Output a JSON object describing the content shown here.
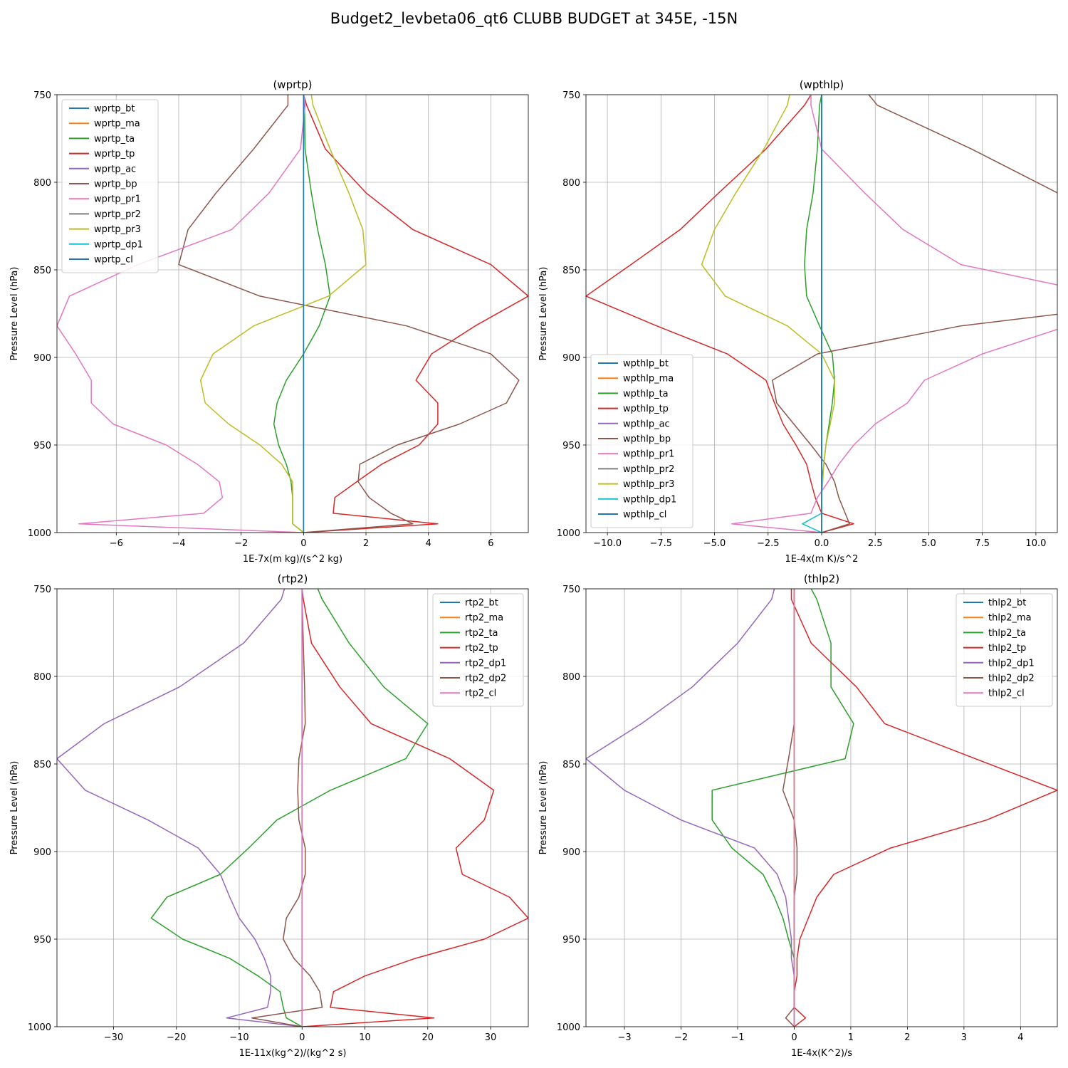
{
  "figure": {
    "title": "Budget2_levbeta06_qt6 CLUBB BUDGET at 345E, -15N"
  },
  "colors": [
    "#1f77b4",
    "#ff7f0e",
    "#2ca02c",
    "#d62728",
    "#9467bd",
    "#8c564b",
    "#e377c2",
    "#7f7f7f",
    "#bcbd22",
    "#17becf"
  ],
  "chart_data": [
    {
      "type": "line",
      "title": "(wprtp)",
      "xlabel": "1E-7x(m kg)/(s^2 kg)",
      "ylabel": "Pressure Level (hPa)",
      "xlim": [
        -7.9,
        7.2
      ],
      "ylim": [
        1000,
        750
      ],
      "xticks": [
        -6,
        -4,
        -2,
        0,
        2,
        4,
        6
      ],
      "xtick_labels": [
        "−6",
        "−4",
        "−2",
        "0",
        "2",
        "4",
        "6"
      ],
      "yticks": [
        750,
        800,
        850,
        900,
        950,
        1000
      ],
      "grid": true,
      "legend": "upper-left",
      "levels": [
        750,
        756,
        781,
        806,
        827,
        847,
        865,
        882,
        898,
        913,
        926,
        938,
        950,
        961,
        971,
        980,
        989,
        995,
        1000
      ],
      "series": [
        {
          "name": "wprtp_bt",
          "color": "#1f77b4",
          "values": [
            0,
            0,
            0,
            0,
            0,
            0,
            0,
            0,
            0,
            0,
            0,
            0,
            0,
            0,
            0,
            0,
            0,
            0,
            0
          ]
        },
        {
          "name": "wprtp_ma",
          "color": "#ff7f0e",
          "values": [
            0,
            0,
            0,
            0,
            0,
            0,
            0,
            0,
            0,
            0,
            0,
            0,
            0,
            0,
            0,
            0,
            0,
            0,
            0
          ]
        },
        {
          "name": "wprtp_ta",
          "color": "#2ca02c",
          "values": [
            0,
            0.03,
            0.05,
            0.25,
            0.45,
            0.7,
            0.85,
            0.5,
            0,
            -0.55,
            -0.85,
            -0.95,
            -0.8,
            -0.55,
            -0.4,
            -0.35,
            -0.35,
            -0.35,
            0
          ]
        },
        {
          "name": "wprtp_tp",
          "color": "#d62728",
          "values": [
            0,
            0.1,
            0.7,
            2,
            3.5,
            6,
            7.2,
            5.5,
            4.1,
            3.6,
            4.3,
            4.3,
            3.7,
            2.5,
            1.7,
            1.0,
            0.95,
            4.3,
            0
          ]
        },
        {
          "name": "wprtp_ac",
          "color": "#9467bd",
          "values": [
            0,
            0,
            0,
            0,
            0,
            0,
            0,
            0,
            0,
            0,
            0,
            0,
            0,
            0,
            0,
            0,
            0,
            0,
            0
          ]
        },
        {
          "name": "wprtp_bp",
          "color": "#8c564b",
          "values": [
            -0.5,
            -0.5,
            -1.6,
            -2.8,
            -3.7,
            -4.0,
            -1.4,
            3.3,
            6.0,
            6.9,
            6.5,
            5.0,
            3.0,
            1.8,
            1.75,
            2.1,
            2.8,
            3.5,
            0
          ]
        },
        {
          "name": "wprtp_pr1",
          "color": "#e377c2",
          "values": [
            0,
            0.05,
            -0.1,
            -1.1,
            -2.3,
            -5.3,
            -7.5,
            -7.9,
            -7.3,
            -6.8,
            -6.8,
            -6.1,
            -4.4,
            -3.4,
            -2.7,
            -2.6,
            -3.2,
            -7.2,
            0
          ]
        },
        {
          "name": "wprtp_pr2",
          "color": "#7f7f7f",
          "values": [
            0,
            0,
            0,
            0,
            0,
            0,
            0,
            0,
            0,
            0,
            0,
            0,
            0,
            0,
            0,
            0,
            0,
            0,
            0
          ]
        },
        {
          "name": "wprtp_pr3",
          "color": "#bcbd22",
          "values": [
            0.25,
            0.3,
            0.85,
            1.45,
            1.9,
            2.0,
            0.8,
            -1.6,
            -2.9,
            -3.3,
            -3.15,
            -2.4,
            -1.4,
            -0.7,
            -0.35,
            -0.35,
            -0.35,
            -0.35,
            0
          ]
        },
        {
          "name": "wprtp_dp1",
          "color": "#17becf",
          "values": [
            0,
            0,
            0,
            0,
            0,
            0,
            0,
            0,
            0,
            0,
            0,
            0,
            0,
            0,
            0,
            0,
            0,
            0,
            0
          ]
        },
        {
          "name": "wprtp_cl",
          "color": "#1f77b4",
          "values": [
            0,
            0,
            0,
            0,
            0,
            0,
            0,
            0,
            0,
            0,
            0,
            0,
            0,
            0,
            0,
            0,
            0,
            0,
            0
          ]
        }
      ]
    },
    {
      "type": "line",
      "title": "(wpthlp)",
      "xlabel": "1E-4x(m K)/s^2",
      "ylabel": "Pressure Level (hPa)",
      "xlim": [
        -11,
        11
      ],
      "ylim": [
        1000,
        750
      ],
      "xticks": [
        -10,
        -7.5,
        -5,
        -2.5,
        0,
        2.5,
        5,
        7.5,
        10
      ],
      "xtick_labels": [
        "−10.0",
        "−7.5",
        "−5.0",
        "−2.5",
        "0.0",
        "2.5",
        "5.0",
        "7.5",
        "10.0"
      ],
      "yticks": [
        750,
        800,
        850,
        900,
        950,
        1000
      ],
      "grid": true,
      "legend": "lower-left",
      "levels": [
        750,
        756,
        781,
        806,
        827,
        847,
        865,
        882,
        898,
        913,
        926,
        938,
        950,
        961,
        971,
        980,
        989,
        995,
        1000
      ],
      "series": [
        {
          "name": "wpthlp_bt",
          "color": "#1f77b4",
          "values": [
            0,
            0,
            0,
            0,
            0,
            0,
            0,
            0,
            0,
            0,
            0,
            0,
            0,
            0,
            0,
            0,
            0,
            0,
            0
          ]
        },
        {
          "name": "wpthlp_ma",
          "color": "#ff7f0e",
          "values": [
            0,
            0,
            0,
            0,
            0,
            0,
            0,
            0,
            0,
            0,
            0,
            0,
            0,
            0,
            0,
            0,
            0,
            0,
            0
          ]
        },
        {
          "name": "wpthlp_ta",
          "color": "#2ca02c",
          "values": [
            0,
            -0.1,
            -0.2,
            -0.4,
            -0.7,
            -0.8,
            -0.7,
            -0.1,
            0.5,
            0.6,
            0.5,
            0.35,
            0.2,
            0.1,
            0,
            0,
            0,
            0,
            0
          ]
        },
        {
          "name": "wpthlp_tp",
          "color": "#d62728",
          "values": [
            -0.5,
            -0.8,
            -2.6,
            -4.8,
            -6.6,
            -8.9,
            -11,
            -7.7,
            -4.4,
            -2.6,
            -2.2,
            -1.8,
            -1.2,
            -0.7,
            -0.5,
            -0.3,
            0,
            1.5,
            0
          ]
        },
        {
          "name": "wpthlp_ac",
          "color": "#9467bd",
          "values": [
            0,
            0,
            0,
            0,
            0,
            0,
            0,
            0,
            0,
            0,
            0,
            0,
            0,
            0,
            0,
            0,
            0,
            0,
            0
          ]
        },
        {
          "name": "wpthlp_bp",
          "color": "#8c564b",
          "values": [
            2.2,
            2.6,
            7.0,
            11.0,
            15.0,
            21.5,
            18.0,
            6.5,
            -0.2,
            -2.3,
            -2.1,
            -1.3,
            -0.5,
            0.2,
            0.6,
            0.8,
            1.1,
            1.3,
            0
          ]
        },
        {
          "name": "wpthlp_pr1",
          "color": "#e377c2",
          "values": [
            -0.5,
            -0.5,
            0,
            2.0,
            3.8,
            6.5,
            13.5,
            11.5,
            7.5,
            4.8,
            4.0,
            2.5,
            1.5,
            0.8,
            0.3,
            -0.2,
            -0.5,
            -4.2,
            0
          ]
        },
        {
          "name": "wpthlp_pr2",
          "color": "#7f7f7f",
          "values": [
            0,
            0,
            0,
            0,
            0,
            0,
            0,
            0,
            0,
            0,
            0,
            0,
            0,
            0,
            0,
            0,
            0,
            0,
            0
          ]
        },
        {
          "name": "wpthlp_pr3",
          "color": "#bcbd22",
          "values": [
            -1.5,
            -1.6,
            -2.7,
            -4.0,
            -5.0,
            -5.6,
            -4.5,
            -1.6,
            0,
            0.6,
            0.6,
            0.4,
            0.2,
            0.1,
            0.05,
            0,
            0,
            0,
            0
          ]
        },
        {
          "name": "wpthlp_dp1",
          "color": "#17becf",
          "values": [
            0,
            0,
            0,
            0,
            0,
            0,
            0,
            0,
            0,
            0,
            0,
            0,
            0,
            0,
            0,
            0,
            0,
            -0.9,
            0
          ]
        },
        {
          "name": "wpthlp_cl",
          "color": "#1f77b4",
          "values": [
            0,
            0,
            0,
            0,
            0,
            0,
            0,
            0,
            0,
            0,
            0,
            0,
            0,
            0,
            0,
            0,
            0,
            0,
            0
          ]
        }
      ]
    },
    {
      "type": "line",
      "title": "(rtp2)",
      "xlabel": "1E-11x(kg^2)/(kg^2 s)",
      "ylabel": "Pressure Level (hPa)",
      "xlim": [
        -39,
        36
      ],
      "ylim": [
        1000,
        750
      ],
      "xticks": [
        -30,
        -20,
        -10,
        0,
        10,
        20,
        30
      ],
      "xtick_labels": [
        "−30",
        "−20",
        "−10",
        "0",
        "10",
        "20",
        "30"
      ],
      "yticks": [
        750,
        800,
        850,
        900,
        950,
        1000
      ],
      "grid": true,
      "legend": "upper-right",
      "levels": [
        750,
        756,
        781,
        806,
        827,
        847,
        865,
        882,
        898,
        913,
        926,
        938,
        950,
        961,
        971,
        980,
        989,
        995,
        1000
      ],
      "series": [
        {
          "name": "rtp2_bt",
          "color": "#1f77b4",
          "values": [
            0,
            0,
            0,
            0,
            0,
            0,
            0,
            0,
            0,
            0,
            0,
            0,
            0,
            0,
            0,
            0,
            0,
            0,
            0
          ]
        },
        {
          "name": "rtp2_ma",
          "color": "#ff7f0e",
          "values": [
            0,
            0,
            0,
            0,
            0,
            0,
            0,
            0,
            0,
            0,
            0,
            0,
            0,
            0,
            0,
            0,
            0,
            0,
            0
          ]
        },
        {
          "name": "rtp2_ta",
          "color": "#2ca02c",
          "values": [
            2.5,
            3.2,
            7.5,
            13,
            20,
            16.5,
            4.5,
            -4,
            -8.5,
            -13,
            -21.5,
            -24,
            -19,
            -11.5,
            -7,
            -3.5,
            -3,
            -2.5,
            0
          ]
        },
        {
          "name": "rtp2_tp",
          "color": "#d62728",
          "values": [
            0,
            0.2,
            1.5,
            6,
            11,
            23.5,
            30.5,
            29,
            24.5,
            25.5,
            33,
            36,
            29,
            18,
            10,
            5,
            4.5,
            21,
            0
          ]
        },
        {
          "name": "rtp2_dp1",
          "color": "#9467bd",
          "values": [
            -2.8,
            -3.3,
            -9.3,
            -19.5,
            -31.5,
            -39,
            -34.5,
            -24.5,
            -16.5,
            -13,
            -11.5,
            -10,
            -7.5,
            -6,
            -5,
            -5,
            -5.5,
            -12,
            0
          ]
        },
        {
          "name": "rtp2_dp2",
          "color": "#8c564b",
          "values": [
            0,
            0,
            0.2,
            0.4,
            0.5,
            -0.5,
            -0.7,
            -0.5,
            0.5,
            0.5,
            -0.5,
            -2.5,
            -3,
            -1.3,
            1.3,
            2.8,
            3.2,
            -8,
            0
          ]
        },
        {
          "name": "rtp2_cl",
          "color": "#e377c2",
          "values": [
            0,
            0,
            0,
            0,
            0,
            0,
            0,
            0,
            0,
            0,
            0,
            0,
            0,
            0,
            0,
            0,
            0,
            0,
            0
          ]
        }
      ]
    },
    {
      "type": "line",
      "title": "(thlp2)",
      "xlabel": "1E-4x(K^2)/s",
      "ylabel": "Pressure Level (hPa)",
      "xlim": [
        -3.68,
        4.65
      ],
      "ylim": [
        1000,
        750
      ],
      "xticks": [
        -3,
        -2,
        -1,
        0,
        1,
        2,
        3,
        4
      ],
      "xtick_labels": [
        "−3",
        "−2",
        "−1",
        "0",
        "1",
        "2",
        "3",
        "4"
      ],
      "yticks": [
        750,
        800,
        850,
        900,
        950,
        1000
      ],
      "grid": true,
      "legend": "upper-right",
      "levels": [
        750,
        756,
        781,
        806,
        827,
        847,
        865,
        882,
        898,
        913,
        926,
        938,
        950,
        961,
        971,
        980,
        989,
        995,
        1000
      ],
      "series": [
        {
          "name": "thlp2_bt",
          "color": "#1f77b4",
          "values": [
            0,
            0,
            0,
            0,
            0,
            0,
            0,
            0,
            0,
            0,
            0,
            0,
            0,
            0,
            0,
            0,
            0,
            0,
            0
          ]
        },
        {
          "name": "thlp2_ma",
          "color": "#ff7f0e",
          "values": [
            0,
            0,
            0,
            0,
            0,
            0,
            0,
            0,
            0,
            0,
            0,
            0,
            0,
            0,
            0,
            0,
            0,
            0,
            0
          ]
        },
        {
          "name": "thlp2_ta",
          "color": "#2ca02c",
          "values": [
            0.3,
            0.4,
            0.65,
            0.65,
            1.05,
            0.9,
            -1.45,
            -1.45,
            -1.1,
            -0.55,
            -0.35,
            -0.2,
            -0.1,
            0,
            0,
            0,
            0,
            0,
            0
          ]
        },
        {
          "name": "thlp2_tp",
          "color": "#d62728",
          "values": [
            -0.05,
            -0.05,
            0.3,
            1.1,
            1.6,
            3.2,
            4.65,
            3.4,
            1.7,
            0.7,
            0.4,
            0.25,
            0.1,
            0.05,
            0.05,
            0,
            0,
            0.2,
            0
          ]
        },
        {
          "name": "thlp2_dp1",
          "color": "#9467bd",
          "values": [
            -0.35,
            -0.4,
            -1.0,
            -1.8,
            -2.7,
            -3.68,
            -3.0,
            -2.0,
            -0.7,
            -0.3,
            -0.15,
            -0.1,
            -0.05,
            -0.05,
            0,
            0,
            0,
            0,
            0
          ]
        },
        {
          "name": "thlp2_dp2",
          "color": "#8c564b",
          "values": [
            0,
            0,
            0,
            0,
            0,
            -0.1,
            -0.2,
            0,
            0.05,
            0.05,
            0,
            0,
            0,
            0,
            0,
            0,
            0,
            -0.15,
            0
          ]
        },
        {
          "name": "thlp2_cl",
          "color": "#e377c2",
          "values": [
            0,
            0,
            0,
            0,
            0,
            0,
            0,
            0,
            0,
            0,
            0,
            0,
            0,
            0,
            0,
            0,
            0,
            0,
            0
          ]
        }
      ]
    }
  ]
}
